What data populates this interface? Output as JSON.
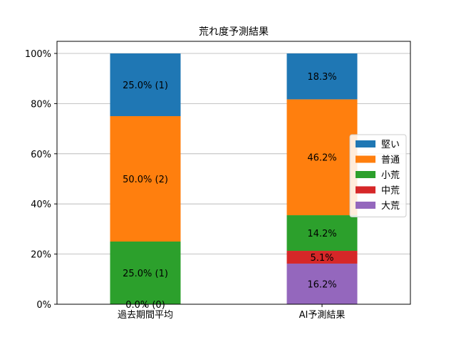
{
  "chart_data": {
    "type": "bar",
    "stacked": true,
    "title": "荒れ度予測結果",
    "xlabel": "",
    "ylabel": "",
    "categories": [
      "過去期間平均",
      "AI予測結果"
    ],
    "ylim": [
      0,
      100
    ],
    "ytick_values": [
      0,
      20,
      40,
      60,
      80,
      100
    ],
    "ytick_labels": [
      "0%",
      "20%",
      "40%",
      "60%",
      "80%",
      "100%"
    ],
    "grid": "horizontal",
    "legend_position": "right",
    "series": [
      {
        "name": "大荒",
        "color": "#9467bd",
        "values": [
          0.0,
          16.2
        ],
        "labels": [
          "0.0% (0)",
          "16.2%"
        ]
      },
      {
        "name": "中荒",
        "color": "#d62728",
        "values": [
          0.0,
          5.1
        ],
        "labels": [
          "",
          "5.1%"
        ]
      },
      {
        "name": "小荒",
        "color": "#2ca02c",
        "values": [
          25.0,
          14.2
        ],
        "labels": [
          "25.0% (1)",
          "14.2%"
        ]
      },
      {
        "name": "普通",
        "color": "#ff7f0e",
        "values": [
          50.0,
          46.2
        ],
        "labels": [
          "50.0% (2)",
          "46.2%"
        ]
      },
      {
        "name": "堅い",
        "color": "#1f77b4",
        "values": [
          25.0,
          18.3
        ],
        "labels": [
          "25.0% (1)",
          "18.3%"
        ]
      }
    ],
    "legend_order": [
      "堅い",
      "普通",
      "小荒",
      "中荒",
      "大荒"
    ]
  }
}
